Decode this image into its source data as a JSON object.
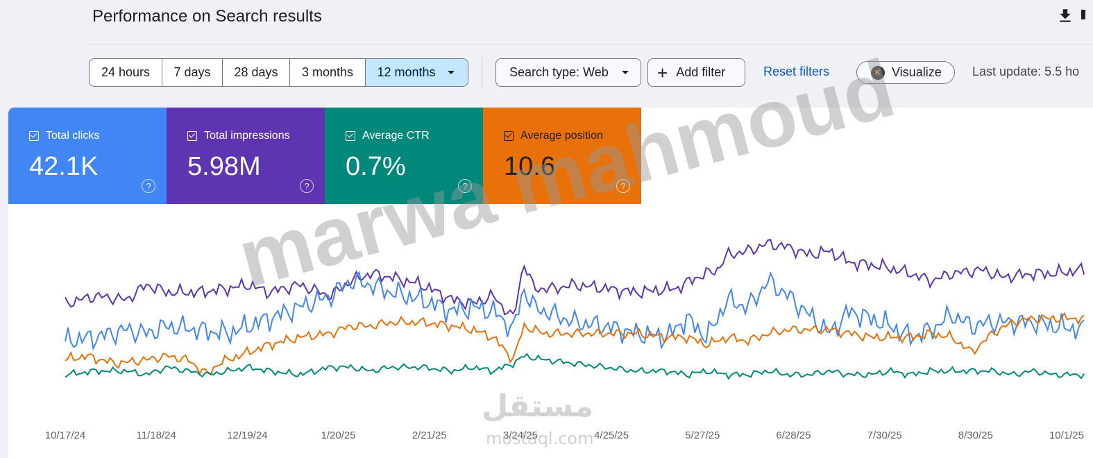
{
  "header": {
    "title": "Performance on Search results",
    "download_icon": "download-icon"
  },
  "toolbar": {
    "ranges": [
      "24 hours",
      "7 days",
      "28 days",
      "3 months",
      "12 months"
    ],
    "active_range": "12 months",
    "search_type": "Search type: Web",
    "add_filter": "Add filter",
    "reset_filters": "Reset filters",
    "visualize": "Visualize",
    "visualize_badge": "K",
    "last_update": "Last update: 5.5 ho"
  },
  "metrics": {
    "clicks": {
      "label": "Total clicks",
      "value": "42.1K",
      "color": "#4285f4"
    },
    "impressions": {
      "label": "Total impressions",
      "value": "5.98M",
      "color": "#5e35b1"
    },
    "ctr": {
      "label": "Average CTR",
      "value": "0.7%",
      "color": "#00897b"
    },
    "position": {
      "label": "Average position",
      "value": "10.6",
      "color": "#e8710a"
    },
    "help_glyph": "?"
  },
  "watermark": {
    "text": "marwa mahmoud",
    "logo": "مستقل",
    "url": "mostaql.com"
  },
  "chart_data": {
    "type": "line",
    "x_ticks": [
      "10/17/24",
      "11/18/24",
      "12/19/24",
      "1/20/25",
      "2/21/25",
      "3/24/25",
      "4/25/25",
      "5/27/25",
      "6/28/25",
      "7/30/25",
      "8/30/25",
      "10/1/25"
    ],
    "x_range": [
      "10/17/24",
      "10/16/25"
    ],
    "grid": false,
    "legend": "metric cards above chart",
    "series": [
      {
        "name": "Total impressions",
        "color": "#5e35b1",
        "anchors": [
          [
            0,
            58
          ],
          [
            0.03,
            62
          ],
          [
            0.06,
            60
          ],
          [
            0.08,
            68
          ],
          [
            0.1,
            64
          ],
          [
            0.13,
            64
          ],
          [
            0.16,
            66
          ],
          [
            0.18,
            68
          ],
          [
            0.2,
            64
          ],
          [
            0.23,
            68
          ],
          [
            0.26,
            62
          ],
          [
            0.28,
            70
          ],
          [
            0.3,
            74
          ],
          [
            0.32,
            72
          ],
          [
            0.35,
            68
          ],
          [
            0.38,
            60
          ],
          [
            0.4,
            58
          ],
          [
            0.42,
            62
          ],
          [
            0.44,
            50
          ],
          [
            0.45,
            80
          ],
          [
            0.46,
            66
          ],
          [
            0.48,
            66
          ],
          [
            0.5,
            68
          ],
          [
            0.53,
            66
          ],
          [
            0.56,
            64
          ],
          [
            0.6,
            66
          ],
          [
            0.62,
            72
          ],
          [
            0.64,
            76
          ],
          [
            0.65,
            84
          ],
          [
            0.67,
            86
          ],
          [
            0.69,
            90
          ],
          [
            0.71,
            88
          ],
          [
            0.73,
            84
          ],
          [
            0.75,
            86
          ],
          [
            0.77,
            80
          ],
          [
            0.8,
            78
          ],
          [
            0.83,
            74
          ],
          [
            0.85,
            70
          ],
          [
            0.87,
            74
          ],
          [
            0.9,
            76
          ],
          [
            0.92,
            72
          ],
          [
            0.95,
            74
          ],
          [
            0.97,
            74
          ],
          [
            1,
            76
          ]
        ]
      },
      {
        "name": "Total clicks",
        "color": "#4285f4",
        "anchors": [
          [
            0,
            38
          ],
          [
            0.03,
            40
          ],
          [
            0.06,
            44
          ],
          [
            0.08,
            42
          ],
          [
            0.1,
            46
          ],
          [
            0.13,
            44
          ],
          [
            0.16,
            42
          ],
          [
            0.18,
            46
          ],
          [
            0.2,
            50
          ],
          [
            0.23,
            56
          ],
          [
            0.26,
            62
          ],
          [
            0.28,
            70
          ],
          [
            0.3,
            68
          ],
          [
            0.32,
            64
          ],
          [
            0.35,
            60
          ],
          [
            0.38,
            54
          ],
          [
            0.4,
            56
          ],
          [
            0.42,
            54
          ],
          [
            0.44,
            44
          ],
          [
            0.45,
            66
          ],
          [
            0.46,
            56
          ],
          [
            0.48,
            52
          ],
          [
            0.5,
            48
          ],
          [
            0.53,
            46
          ],
          [
            0.56,
            42
          ],
          [
            0.59,
            40
          ],
          [
            0.61,
            50
          ],
          [
            0.63,
            40
          ],
          [
            0.65,
            60
          ],
          [
            0.67,
            56
          ],
          [
            0.69,
            70
          ],
          [
            0.71,
            62
          ],
          [
            0.73,
            52
          ],
          [
            0.75,
            42
          ],
          [
            0.77,
            54
          ],
          [
            0.79,
            50
          ],
          [
            0.81,
            46
          ],
          [
            0.83,
            40
          ],
          [
            0.85,
            44
          ],
          [
            0.87,
            52
          ],
          [
            0.89,
            46
          ],
          [
            0.91,
            48
          ],
          [
            0.93,
            48
          ],
          [
            0.95,
            48
          ],
          [
            0.97,
            46
          ],
          [
            1,
            44
          ]
        ]
      },
      {
        "name": "Average position",
        "color": "#e8710a",
        "anchors": [
          [
            0,
            28
          ],
          [
            0.02,
            30
          ],
          [
            0.05,
            26
          ],
          [
            0.08,
            28
          ],
          [
            0.1,
            30
          ],
          [
            0.12,
            28
          ],
          [
            0.14,
            20
          ],
          [
            0.15,
            26
          ],
          [
            0.17,
            30
          ],
          [
            0.2,
            36
          ],
          [
            0.23,
            40
          ],
          [
            0.26,
            42
          ],
          [
            0.28,
            46
          ],
          [
            0.3,
            46
          ],
          [
            0.32,
            48
          ],
          [
            0.35,
            48
          ],
          [
            0.38,
            46
          ],
          [
            0.4,
            44
          ],
          [
            0.42,
            40
          ],
          [
            0.44,
            28
          ],
          [
            0.45,
            46
          ],
          [
            0.47,
            42
          ],
          [
            0.5,
            42
          ],
          [
            0.53,
            42
          ],
          [
            0.56,
            42
          ],
          [
            0.59,
            40
          ],
          [
            0.61,
            40
          ],
          [
            0.63,
            36
          ],
          [
            0.65,
            40
          ],
          [
            0.67,
            38
          ],
          [
            0.69,
            42
          ],
          [
            0.71,
            44
          ],
          [
            0.73,
            44
          ],
          [
            0.75,
            44
          ],
          [
            0.77,
            42
          ],
          [
            0.79,
            40
          ],
          [
            0.81,
            40
          ],
          [
            0.83,
            40
          ],
          [
            0.85,
            42
          ],
          [
            0.87,
            40
          ],
          [
            0.89,
            32
          ],
          [
            0.91,
            42
          ],
          [
            0.93,
            48
          ],
          [
            0.95,
            50
          ],
          [
            0.97,
            50
          ],
          [
            1,
            50
          ]
        ]
      },
      {
        "name": "Average CTR",
        "color": "#00897b",
        "anchors": [
          [
            0,
            20
          ],
          [
            0.03,
            22
          ],
          [
            0.06,
            22
          ],
          [
            0.08,
            20
          ],
          [
            0.1,
            24
          ],
          [
            0.12,
            22
          ],
          [
            0.14,
            20
          ],
          [
            0.16,
            22
          ],
          [
            0.18,
            24
          ],
          [
            0.2,
            22
          ],
          [
            0.23,
            20
          ],
          [
            0.26,
            24
          ],
          [
            0.28,
            24
          ],
          [
            0.3,
            22
          ],
          [
            0.32,
            24
          ],
          [
            0.35,
            24
          ],
          [
            0.38,
            22
          ],
          [
            0.4,
            24
          ],
          [
            0.42,
            22
          ],
          [
            0.44,
            26
          ],
          [
            0.45,
            30
          ],
          [
            0.47,
            28
          ],
          [
            0.5,
            26
          ],
          [
            0.53,
            24
          ],
          [
            0.56,
            22
          ],
          [
            0.59,
            22
          ],
          [
            0.61,
            20
          ],
          [
            0.63,
            22
          ],
          [
            0.65,
            20
          ],
          [
            0.67,
            20
          ],
          [
            0.69,
            22
          ],
          [
            0.71,
            20
          ],
          [
            0.73,
            20
          ],
          [
            0.75,
            22
          ],
          [
            0.77,
            20
          ],
          [
            0.79,
            20
          ],
          [
            0.81,
            22
          ],
          [
            0.83,
            20
          ],
          [
            0.85,
            22
          ],
          [
            0.87,
            22
          ],
          [
            0.89,
            22
          ],
          [
            0.91,
            22
          ],
          [
            0.93,
            20
          ],
          [
            0.95,
            22
          ],
          [
            0.97,
            20
          ],
          [
            1,
            20
          ]
        ]
      }
    ]
  }
}
